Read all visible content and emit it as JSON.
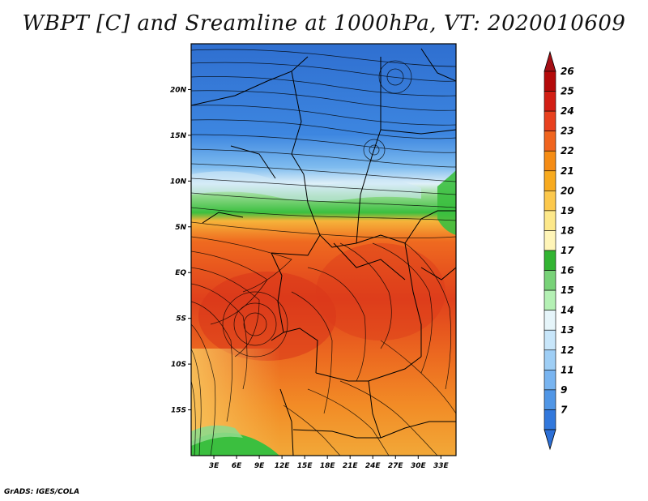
{
  "title": "WBPT [C] and Sreamline at 1000hPa, VT: 2020010609",
  "footer": "GrADS: IGES/COLA",
  "map": {
    "variable": "Wet-bulb potential temperature",
    "units": "C",
    "level": "1000hPa",
    "valid_time": "2020010609",
    "lon_range": [
      0,
      35
    ],
    "lat_range": [
      -20,
      25
    ],
    "lat_ticks": [
      {
        "value": 20,
        "label": "20N"
      },
      {
        "value": 15,
        "label": "15N"
      },
      {
        "value": 10,
        "label": "10N"
      },
      {
        "value": 5,
        "label": "5N"
      },
      {
        "value": 0,
        "label": "EQ"
      },
      {
        "value": -5,
        "label": "5S"
      },
      {
        "value": -10,
        "label": "10S"
      },
      {
        "value": -15,
        "label": "15S"
      }
    ],
    "lon_ticks": [
      {
        "value": 3,
        "label": "3E"
      },
      {
        "value": 6,
        "label": "6E"
      },
      {
        "value": 9,
        "label": "9E"
      },
      {
        "value": 12,
        "label": "12E"
      },
      {
        "value": 15,
        "label": "15E"
      },
      {
        "value": 18,
        "label": "18E"
      },
      {
        "value": 21,
        "label": "21E"
      },
      {
        "value": 24,
        "label": "24E"
      },
      {
        "value": 27,
        "label": "27E"
      },
      {
        "value": 30,
        "label": "30E"
      },
      {
        "value": 33,
        "label": "33E"
      }
    ]
  },
  "colorbar": {
    "labels": [
      "26",
      "25",
      "24",
      "23",
      "22",
      "21",
      "20",
      "19",
      "18",
      "17",
      "16",
      "15",
      "14",
      "13",
      "12",
      "11",
      "9",
      "7"
    ],
    "top_arrow_color": "#a50f15",
    "bottom_arrow_color": "#2c6fd6",
    "colors": [
      "#b40a0a",
      "#d21e14",
      "#e8401e",
      "#f0641e",
      "#f58c14",
      "#f8aa1e",
      "#fcc84c",
      "#fde88a",
      "#fff5b8",
      "#32b432",
      "#78d278",
      "#b4f0b4",
      "#e6f5fa",
      "#c8e6fa",
      "#9ecef5",
      "#78b4f0",
      "#5096e6",
      "#3278dc"
    ]
  }
}
